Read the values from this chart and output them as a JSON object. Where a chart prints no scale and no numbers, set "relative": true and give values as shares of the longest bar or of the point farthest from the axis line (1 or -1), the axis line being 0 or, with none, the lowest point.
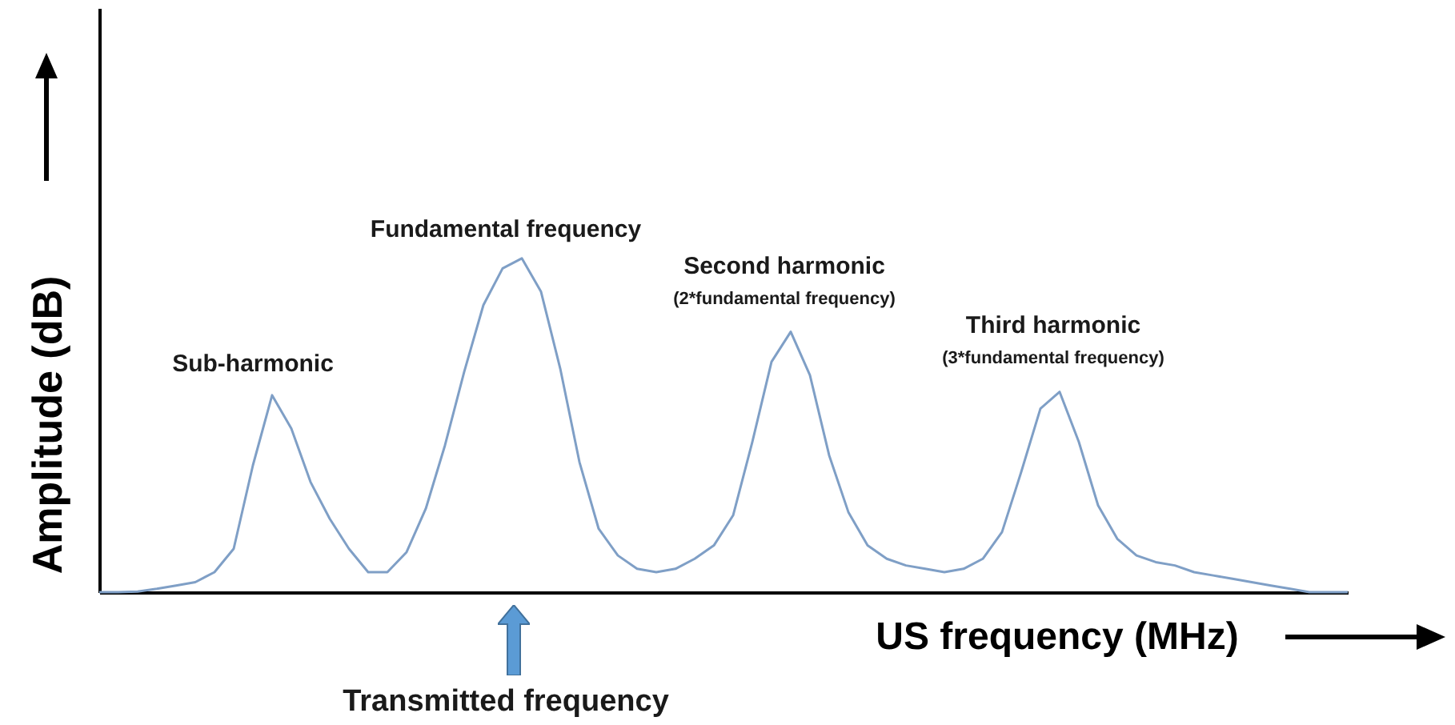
{
  "chart_data": {
    "type": "line",
    "relative": true,
    "xlabel": "US frequency (MHz)",
    "ylabel": "Amplitude (dB)",
    "categories": [
      null,
      null,
      null,
      null,
      null,
      null,
      null,
      null,
      null,
      null,
      null,
      null,
      null,
      null,
      null,
      null,
      null,
      null,
      null,
      null,
      null,
      null,
      null,
      null,
      null,
      null,
      null,
      null,
      null,
      null,
      null,
      null,
      null,
      null,
      null,
      null,
      null,
      null,
      null,
      null,
      null,
      null,
      null,
      null,
      null,
      null,
      null,
      null,
      null,
      null,
      null,
      null,
      null,
      null,
      null,
      null,
      null,
      null,
      null,
      null,
      null,
      null,
      null,
      null,
      null,
      null
    ],
    "series": [
      {
        "color": "#7f9fc6",
        "values": [
          0,
          0,
          0.002,
          0.01,
          0.02,
          0.03,
          0.06,
          0.13,
          0.38,
          0.59,
          0.49,
          0.33,
          0.22,
          0.13,
          0.06,
          0.06,
          0.12,
          0.25,
          0.44,
          0.66,
          0.86,
          0.97,
          1,
          0.9,
          0.67,
          0.39,
          0.19,
          0.11,
          0.07,
          0.06,
          0.07,
          0.1,
          0.14,
          0.23,
          0.45,
          0.69,
          0.78,
          0.65,
          0.41,
          0.24,
          0.14,
          0.1,
          0.08,
          0.07,
          0.06,
          0.07,
          0.1,
          0.18,
          0.36,
          0.55,
          0.6,
          0.45,
          0.26,
          0.16,
          0.11,
          0.09,
          0.08,
          0.06,
          0.05,
          0.04,
          0.03,
          0.02,
          0.01,
          0,
          0,
          0
        ]
      }
    ],
    "marker": "none",
    "line_style": "solid",
    "grid": false,
    "legend": false,
    "annotations": [
      "Sub-harmonic",
      "Fundamental frequency",
      "Second harmonic",
      "(2*fundamental frequency)",
      "Third harmonic",
      "(3*fundamental frequency)",
      "Transmitted frequency"
    ]
  }
}
